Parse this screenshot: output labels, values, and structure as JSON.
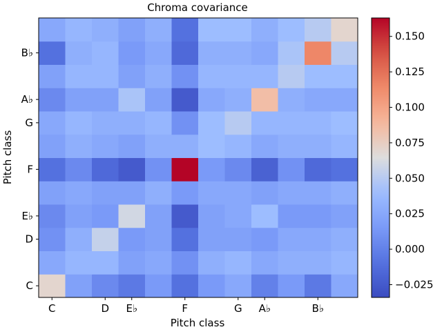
{
  "chart_data": {
    "type": "heatmap",
    "title": "Chroma covariance",
    "xlabel": "Pitch class",
    "ylabel": "Pitch class",
    "x_tick_labels": [
      "C",
      "",
      "D",
      "E♭",
      "",
      "F",
      "",
      "G",
      "A♭",
      "",
      "B♭",
      ""
    ],
    "y_tick_labels": [
      "C",
      "",
      "D",
      "E♭",
      "",
      "F",
      "",
      "G",
      "A♭",
      "",
      "B♭",
      ""
    ],
    "rows_bottom_to_top": [
      [
        0.07,
        0.02,
        0.005,
        -0.005,
        0.015,
        -0.01,
        0.015,
        0.025,
        0.0,
        0.015,
        -0.005,
        0.025
      ],
      [
        0.025,
        0.035,
        0.035,
        0.02,
        0.025,
        0.01,
        0.03,
        0.035,
        0.025,
        0.03,
        0.03,
        0.035
      ],
      [
        0.01,
        0.03,
        0.055,
        0.015,
        0.02,
        -0.01,
        0.02,
        0.02,
        0.015,
        0.025,
        0.025,
        0.03
      ],
      [
        0.005,
        0.02,
        0.015,
        0.06,
        0.02,
        -0.025,
        0.02,
        0.025,
        0.04,
        0.015,
        0.015,
        0.02
      ],
      [
        0.02,
        0.025,
        0.02,
        0.02,
        0.03,
        0.015,
        0.025,
        0.025,
        0.02,
        0.025,
        0.025,
        0.03
      ],
      [
        -0.01,
        0.005,
        -0.015,
        -0.025,
        0.01,
        0.163,
        0.015,
        0.005,
        -0.02,
        0.01,
        -0.015,
        -0.01
      ],
      [
        0.02,
        0.03,
        0.025,
        0.02,
        0.03,
        0.03,
        0.04,
        0.035,
        0.025,
        0.03,
        0.03,
        0.035
      ],
      [
        0.025,
        0.035,
        0.03,
        0.03,
        0.035,
        0.01,
        0.04,
        0.05,
        0.035,
        0.035,
        0.035,
        0.04
      ],
      [
        0.005,
        0.02,
        0.02,
        0.045,
        0.02,
        -0.025,
        0.025,
        0.03,
        0.085,
        0.03,
        0.025,
        0.025
      ],
      [
        0.02,
        0.035,
        0.035,
        0.02,
        0.03,
        0.01,
        0.035,
        0.035,
        0.035,
        0.05,
        0.04,
        0.04
      ],
      [
        -0.01,
        0.03,
        0.035,
        0.015,
        0.025,
        -0.015,
        0.03,
        0.03,
        0.025,
        0.045,
        0.115,
        0.05
      ],
      [
        0.025,
        0.035,
        0.03,
        0.02,
        0.03,
        -0.01,
        0.04,
        0.04,
        0.03,
        0.04,
        0.05,
        0.07
      ]
    ],
    "colorbar": {
      "colormap": "coolwarm",
      "range": [
        -0.034,
        0.163
      ],
      "tick_labels": [
        "−0.025",
        "0.000",
        "0.025",
        "0.050",
        "0.075",
        "0.100",
        "0.125",
        "0.150"
      ],
      "tick_values": [
        -0.025,
        0,
        0.025,
        0.05,
        0.075,
        0.1,
        0.125,
        0.15
      ]
    }
  }
}
